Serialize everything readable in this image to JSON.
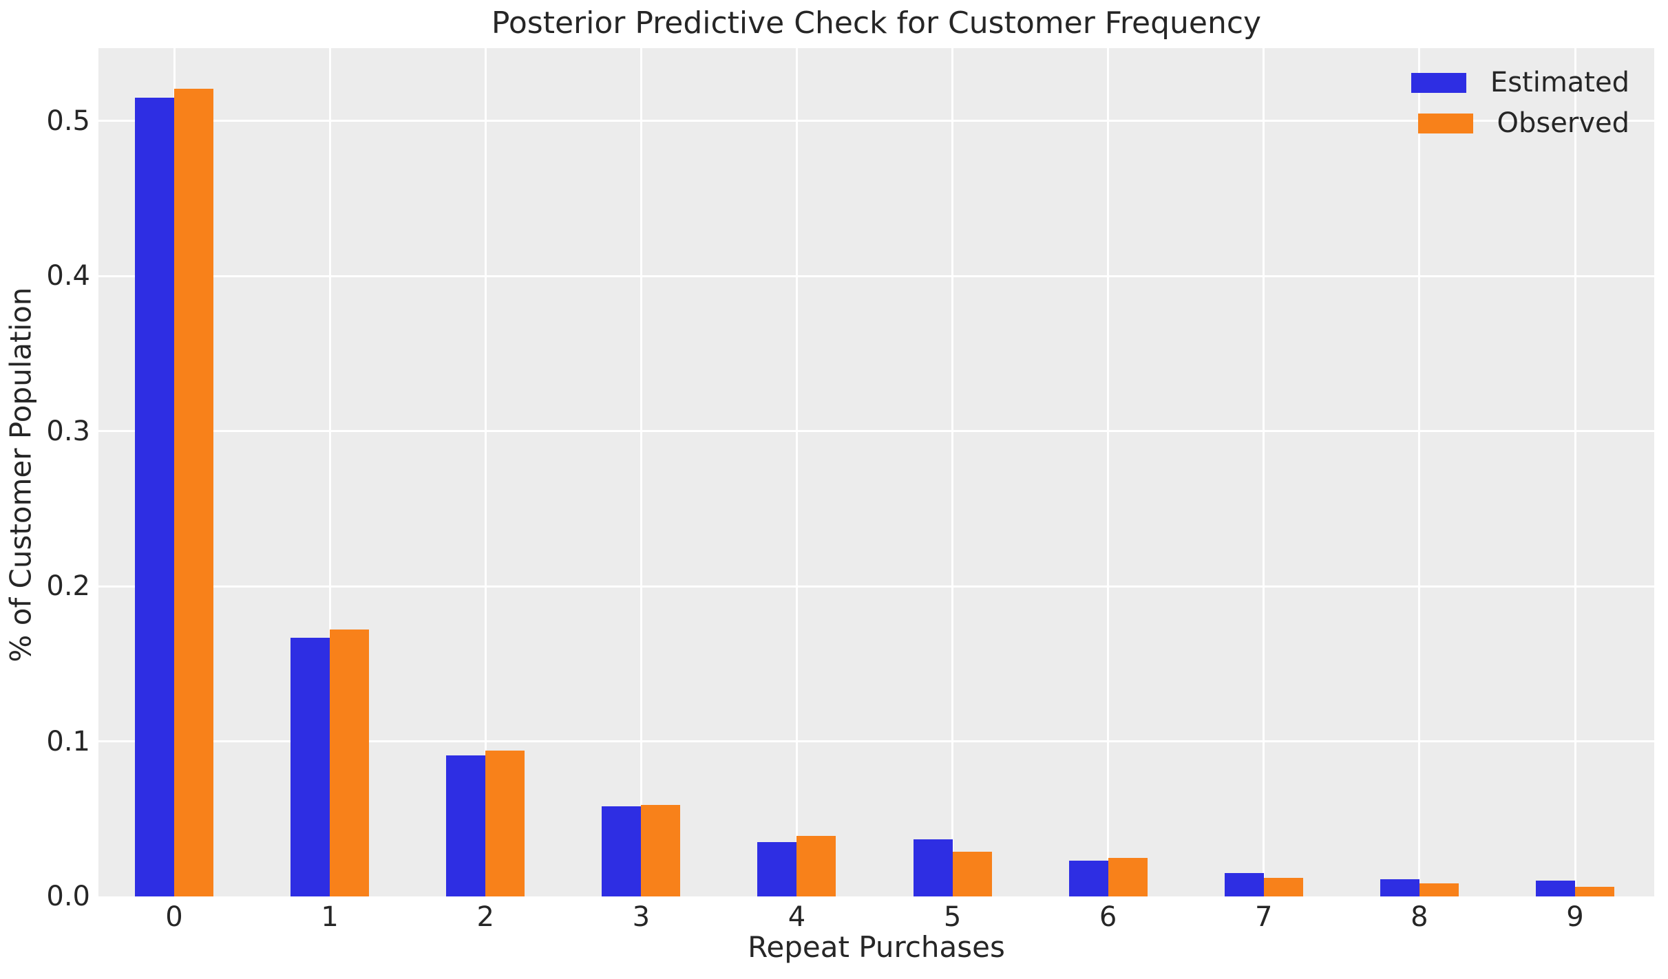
{
  "chart_data": {
    "type": "bar",
    "title": "Posterior Predictive Check for Customer Frequency",
    "xlabel": "Repeat Purchases",
    "ylabel": "% of Customer Population",
    "categories": [
      "0",
      "1",
      "2",
      "3",
      "4",
      "5",
      "6",
      "7",
      "8",
      "9"
    ],
    "series": [
      {
        "name": "Estimated",
        "color": "#2E2EE3",
        "values": [
          0.515,
          0.167,
          0.091,
          0.058,
          0.035,
          0.037,
          0.023,
          0.015,
          0.011,
          0.01
        ]
      },
      {
        "name": "Observed",
        "color": "#F8811A",
        "values": [
          0.521,
          0.172,
          0.094,
          0.059,
          0.039,
          0.029,
          0.025,
          0.012,
          0.0085,
          0.006
        ]
      }
    ],
    "ytick_values": [
      0.0,
      0.1,
      0.2,
      0.3,
      0.4,
      0.5
    ],
    "ytick_labels": [
      "0.0",
      "0.1",
      "0.2",
      "0.3",
      "0.4",
      "0.5"
    ],
    "ylim": [
      0,
      0.547
    ],
    "grid": true,
    "legend_position": "upper right",
    "plot_background": "#ECECEC",
    "gridline_color": "#FFFFFF",
    "text_color": "#262626"
  }
}
